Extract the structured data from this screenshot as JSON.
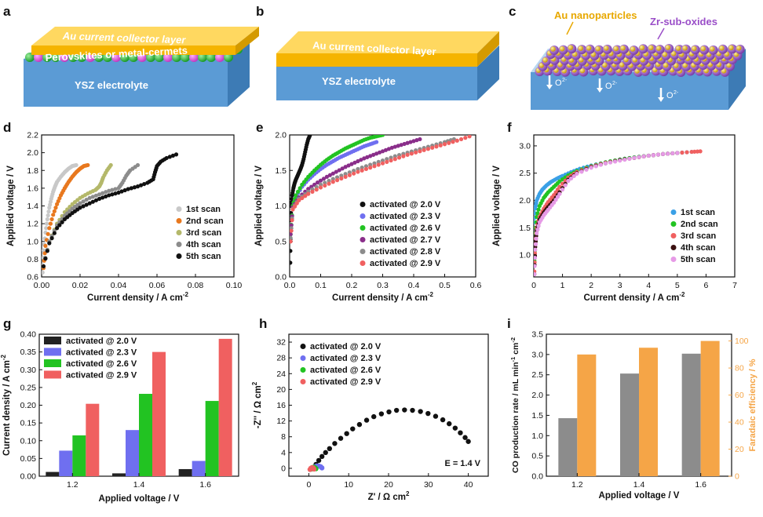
{
  "panel_labels": [
    "a",
    "b",
    "c",
    "d",
    "e",
    "f",
    "g",
    "h",
    "i"
  ],
  "illustrations": {
    "a": {
      "top_layer": "Au current collector layer",
      "middle_layer": "Perovskites or metal-cermets",
      "bottom_layer": "YSZ electrolyte"
    },
    "b": {
      "top_layer": "Au current collector layer",
      "bottom_layer": "YSZ electrolyte"
    },
    "c": {
      "particles_a": "Au nanoparticles",
      "particles_b": "Zr-sub-oxides",
      "ion": "O",
      "ion_charge": "2-"
    }
  },
  "colors": {
    "black": "#111111",
    "blue": "#6f6ff0",
    "green": "#22c322",
    "purple": "#8a2e8a",
    "gray": "#8c8c8c",
    "red": "#f06060",
    "orange": "#f5a547",
    "light": "#c8c8c8",
    "olive": "#b4b86a",
    "sky": "#3aa0e6",
    "pink": "#f07070",
    "dark": "#3a1010",
    "magenta": "#e69ae6"
  },
  "chart_data": [
    {
      "id": "d",
      "type": "scatter",
      "xlabel": "Current density / A cm",
      "xlabel_sup": "-2",
      "ylabel": "Applied voltage / V",
      "xlim": [
        0,
        0.1
      ],
      "ylim": [
        0.6,
        2.2
      ],
      "xticks": [
        "0.00",
        "0.02",
        "0.04",
        "0.06",
        "0.08",
        "0.10"
      ],
      "yticks": [
        "0.6",
        "0.8",
        "1.0",
        "1.2",
        "1.4",
        "1.6",
        "1.8",
        "2.0",
        "2.2"
      ],
      "legend_position": "center-right",
      "series": [
        {
          "name": "1st scan",
          "color": "#c8c8c8",
          "x": [
            0.0005,
            0.001,
            0.002,
            0.003,
            0.004,
            0.005,
            0.006,
            0.007,
            0.008,
            0.01,
            0.012,
            0.014,
            0.016,
            0.018
          ],
          "y": [
            0.65,
            0.9,
            1.1,
            1.25,
            1.38,
            1.48,
            1.56,
            1.62,
            1.67,
            1.73,
            1.78,
            1.82,
            1.85,
            1.86
          ]
        },
        {
          "name": "2nd scan",
          "color": "#e8781e",
          "x": [
            0.001,
            0.002,
            0.004,
            0.006,
            0.008,
            0.01,
            0.012,
            0.014,
            0.016,
            0.018,
            0.02,
            0.022,
            0.024
          ],
          "y": [
            0.7,
            0.95,
            1.15,
            1.3,
            1.42,
            1.52,
            1.6,
            1.67,
            1.73,
            1.78,
            1.82,
            1.85,
            1.86
          ]
        },
        {
          "name": "3rd scan",
          "color": "#b4b86a",
          "x": [
            0.001,
            0.004,
            0.008,
            0.012,
            0.016,
            0.02,
            0.024,
            0.028,
            0.03,
            0.031,
            0.032,
            0.034,
            0.036
          ],
          "y": [
            0.72,
            1.0,
            1.2,
            1.33,
            1.42,
            1.49,
            1.54,
            1.58,
            1.62,
            1.66,
            1.72,
            1.8,
            1.86
          ]
        },
        {
          "name": "4th scan",
          "color": "#8c8c8c",
          "x": [
            0.001,
            0.004,
            0.008,
            0.012,
            0.016,
            0.02,
            0.025,
            0.03,
            0.035,
            0.04,
            0.042,
            0.044,
            0.046,
            0.05
          ],
          "y": [
            0.72,
            1.0,
            1.18,
            1.29,
            1.37,
            1.43,
            1.49,
            1.53,
            1.57,
            1.6,
            1.66,
            1.74,
            1.8,
            1.86
          ]
        },
        {
          "name": "5th scan",
          "color": "#111111",
          "x": [
            0.001,
            0.004,
            0.008,
            0.012,
            0.016,
            0.02,
            0.025,
            0.03,
            0.035,
            0.04,
            0.045,
            0.05,
            0.055,
            0.058,
            0.059,
            0.06,
            0.062,
            0.065,
            0.07
          ],
          "y": [
            0.72,
            0.98,
            1.15,
            1.25,
            1.32,
            1.38,
            1.43,
            1.48,
            1.52,
            1.55,
            1.59,
            1.62,
            1.66,
            1.7,
            1.78,
            1.85,
            1.9,
            1.94,
            1.98
          ]
        }
      ]
    },
    {
      "id": "e",
      "type": "scatter",
      "xlabel": "Current density / A cm",
      "xlabel_sup": "-2",
      "ylabel": "Applied voltage / V",
      "xlim": [
        0,
        0.6
      ],
      "ylim": [
        0,
        2.0
      ],
      "xticks": [
        "0.0",
        "0.1",
        "0.2",
        "0.3",
        "0.4",
        "0.5",
        "0.6"
      ],
      "yticks": [
        "0.0",
        "0.5",
        "1.0",
        "1.5",
        "2.0"
      ],
      "legend_position": "bottom-right",
      "series": [
        {
          "name": "activated @ 2.0 V",
          "color": "#111111",
          "x": [
            0.002,
            0.003,
            0.005,
            0.008,
            0.012,
            0.016,
            0.02,
            0.025,
            0.03,
            0.035,
            0.04,
            0.045,
            0.05,
            0.055,
            0.06,
            0.065
          ],
          "y": [
            0.2,
            0.7,
            1.0,
            1.15,
            1.25,
            1.32,
            1.37,
            1.42,
            1.47,
            1.52,
            1.58,
            1.66,
            1.76,
            1.86,
            1.94,
            1.99
          ]
        },
        {
          "name": "activated @ 2.3 V",
          "color": "#6f6ff0",
          "x": [
            0.003,
            0.01,
            0.02,
            0.04,
            0.06,
            0.08,
            0.1,
            0.12,
            0.14,
            0.16,
            0.18,
            0.2,
            0.22,
            0.24,
            0.26,
            0.28
          ],
          "y": [
            0.6,
            1.0,
            1.13,
            1.27,
            1.37,
            1.45,
            1.52,
            1.58,
            1.63,
            1.68,
            1.72,
            1.76,
            1.8,
            1.84,
            1.87,
            1.9
          ]
        },
        {
          "name": "activated @ 2.6 V",
          "color": "#22c322",
          "x": [
            0.003,
            0.01,
            0.02,
            0.04,
            0.06,
            0.08,
            0.1,
            0.12,
            0.14,
            0.16,
            0.18,
            0.2,
            0.22,
            0.24,
            0.26,
            0.28,
            0.3
          ],
          "y": [
            0.6,
            1.0,
            1.15,
            1.3,
            1.41,
            1.5,
            1.58,
            1.65,
            1.71,
            1.76,
            1.81,
            1.85,
            1.89,
            1.93,
            1.96,
            1.98,
            2.0
          ]
        },
        {
          "name": "activated @ 2.7 V",
          "color": "#8a2e8a",
          "x": [
            0.003,
            0.01,
            0.03,
            0.06,
            0.09,
            0.12,
            0.15,
            0.18,
            0.21,
            0.24,
            0.27,
            0.3,
            0.33,
            0.36,
            0.39,
            0.42
          ],
          "y": [
            0.6,
            0.98,
            1.12,
            1.24,
            1.33,
            1.41,
            1.48,
            1.55,
            1.61,
            1.67,
            1.72,
            1.77,
            1.82,
            1.86,
            1.9,
            1.94
          ]
        },
        {
          "name": "activated @ 2.8 V",
          "color": "#8c8c8c",
          "x": [
            0.003,
            0.01,
            0.03,
            0.06,
            0.1,
            0.14,
            0.18,
            0.22,
            0.26,
            0.3,
            0.34,
            0.38,
            0.42,
            0.46,
            0.5,
            0.53
          ],
          "y": [
            0.55,
            0.96,
            1.1,
            1.2,
            1.3,
            1.38,
            1.45,
            1.52,
            1.58,
            1.64,
            1.7,
            1.75,
            1.8,
            1.85,
            1.9,
            1.94
          ]
        },
        {
          "name": "activated @ 2.9 V",
          "color": "#f06060",
          "x": [
            0.003,
            0.01,
            0.03,
            0.06,
            0.1,
            0.14,
            0.18,
            0.22,
            0.26,
            0.3,
            0.34,
            0.38,
            0.42,
            0.46,
            0.5,
            0.54,
            0.58
          ],
          "y": [
            0.5,
            0.95,
            1.08,
            1.17,
            1.26,
            1.34,
            1.41,
            1.48,
            1.54,
            1.6,
            1.66,
            1.72,
            1.77,
            1.82,
            1.87,
            1.92,
            1.98
          ]
        }
      ]
    },
    {
      "id": "f",
      "type": "scatter",
      "xlabel": "Current density / A cm",
      "xlabel_sup": "-2",
      "ylabel": "Applied voltage / V",
      "xlim": [
        0,
        7
      ],
      "ylim": [
        0.6,
        3.2
      ],
      "xticks": [
        "0",
        "1",
        "2",
        "3",
        "4",
        "5",
        "6",
        "7"
      ],
      "yticks": [
        "1.0",
        "1.5",
        "2.0",
        "2.5",
        "3.0"
      ],
      "legend_position": "bottom-right",
      "series": [
        {
          "name": "1st scan",
          "color": "#3aa0e6",
          "x": [
            0.02,
            0.05,
            0.1,
            0.2,
            0.3,
            0.45,
            0.6,
            0.8,
            1.0,
            1.3,
            1.6,
            2.0,
            2.5,
            3.0,
            3.5,
            4.0,
            4.5,
            5.0,
            5.5
          ],
          "y": [
            1.6,
            1.85,
            2.0,
            2.12,
            2.2,
            2.28,
            2.34,
            2.4,
            2.45,
            2.52,
            2.58,
            2.64,
            2.7,
            2.75,
            2.79,
            2.82,
            2.85,
            2.87,
            2.89
          ]
        },
        {
          "name": "2nd scan",
          "color": "#22c322",
          "x": [
            0.02,
            0.05,
            0.1,
            0.2,
            0.35,
            0.5,
            0.7,
            0.9,
            1.2,
            1.5,
            2.0,
            2.5,
            3.0,
            3.5,
            4.0,
            4.5,
            5.0
          ],
          "y": [
            0.9,
            1.4,
            1.7,
            1.9,
            2.05,
            2.15,
            2.25,
            2.35,
            2.46,
            2.54,
            2.63,
            2.7,
            2.75,
            2.79,
            2.82,
            2.85,
            2.87
          ]
        },
        {
          "name": "3rd scan",
          "color": "#f06060",
          "x": [
            0.02,
            0.05,
            0.1,
            0.2,
            0.35,
            0.5,
            0.7,
            0.9,
            1.2,
            1.5,
            2.0,
            2.5,
            3.0,
            3.5,
            4.0,
            4.5,
            5.0,
            5.5,
            5.8
          ],
          "y": [
            0.7,
            1.2,
            1.5,
            1.7,
            1.85,
            1.97,
            2.1,
            2.25,
            2.42,
            2.52,
            2.62,
            2.69,
            2.74,
            2.78,
            2.82,
            2.85,
            2.87,
            2.89,
            2.9
          ]
        },
        {
          "name": "4th scan",
          "color": "#3a1010",
          "x": [
            0.02,
            0.05,
            0.1,
            0.2,
            0.35,
            0.5,
            0.7,
            0.9,
            1.2,
            1.5,
            2.0,
            2.5,
            3.0,
            3.5,
            4.0,
            4.5,
            5.0
          ],
          "y": [
            0.65,
            1.15,
            1.45,
            1.65,
            1.78,
            1.88,
            2.0,
            2.15,
            2.38,
            2.5,
            2.61,
            2.68,
            2.74,
            2.78,
            2.82,
            2.85,
            2.87
          ]
        },
        {
          "name": "5th scan",
          "color": "#e69ae6",
          "x": [
            0.02,
            0.05,
            0.1,
            0.2,
            0.35,
            0.5,
            0.7,
            0.9,
            1.2,
            1.5,
            2.0,
            2.5,
            3.0,
            3.5,
            4.0,
            4.5,
            5.0
          ],
          "y": [
            0.65,
            1.1,
            1.4,
            1.6,
            1.73,
            1.83,
            1.96,
            2.12,
            2.36,
            2.49,
            2.6,
            2.68,
            2.73,
            2.78,
            2.82,
            2.85,
            2.87
          ]
        }
      ]
    },
    {
      "id": "g",
      "type": "bar",
      "xlabel": "Applied voltage / V",
      "ylabel": "Current density / A cm",
      "ylabel_sup": "-2",
      "categories": [
        "1.2",
        "1.4",
        "1.6"
      ],
      "ylim": [
        0,
        0.4
      ],
      "yticks": [
        "0.00",
        "0.05",
        "0.10",
        "0.15",
        "0.20",
        "0.25",
        "0.30",
        "0.35",
        "0.40"
      ],
      "legend_position": "top-left",
      "series": [
        {
          "name": "activated @ 2.0 V",
          "color": "#222222",
          "values": [
            0.012,
            0.008,
            0.02
          ]
        },
        {
          "name": "activated @ 2.3 V",
          "color": "#6f6ff0",
          "values": [
            0.072,
            0.13,
            0.043
          ]
        },
        {
          "name": "activated @ 2.6 V",
          "color": "#22c322",
          "values": [
            0.115,
            0.232,
            0.212
          ]
        },
        {
          "name": "activated @ 2.9 V",
          "color": "#f06060",
          "values": [
            0.204,
            0.35,
            0.387
          ]
        }
      ]
    },
    {
      "id": "h",
      "type": "scatter",
      "xlabel": "Z' / Ω cm",
      "xlabel_sup": "2",
      "ylabel": "-Z'' / Ω cm",
      "ylabel_sup": "2",
      "xlim": [
        -5,
        45
      ],
      "ylim": [
        -2,
        34
      ],
      "xticks": [
        "0",
        "10",
        "20",
        "30",
        "40"
      ],
      "xtick_values": [
        0,
        10,
        20,
        30,
        40
      ],
      "yticks": [
        "0",
        "4",
        "8",
        "12",
        "16",
        "20",
        "24",
        "28",
        "32"
      ],
      "ytick_values": [
        0,
        4,
        8,
        12,
        16,
        20,
        24,
        28,
        32
      ],
      "annotation": "E = 1.4 V",
      "legend_position": "top-left",
      "series": [
        {
          "name": "activated @ 2.0 V",
          "color": "#111111",
          "x": [
            1.2,
            1.8,
            2.5,
            3.3,
            4.2,
            5.2,
            6.5,
            8.0,
            9.5,
            11.0,
            12.7,
            14.5,
            16.3,
            18.2,
            20.1,
            22.0,
            24.0,
            26.0,
            28.0,
            29.9,
            31.8,
            33.6,
            35.2,
            36.7,
            38.0,
            39.2,
            40.0
          ],
          "y": [
            0.2,
            1.0,
            2.0,
            3.0,
            4.0,
            5.0,
            6.3,
            7.6,
            8.8,
            10.0,
            11.1,
            12.2,
            13.1,
            13.8,
            14.3,
            14.7,
            14.8,
            14.7,
            14.4,
            13.9,
            13.2,
            12.3,
            11.3,
            10.2,
            9.0,
            7.8,
            6.8
          ]
        },
        {
          "name": "activated @ 2.3 V",
          "color": "#6f6ff0",
          "x": [
            1.0,
            1.5,
            2.0,
            2.5,
            3.0,
            3.3
          ],
          "y": [
            0.0,
            0.4,
            0.6,
            0.6,
            0.4,
            0.1
          ]
        },
        {
          "name": "activated @ 2.6 V",
          "color": "#22c322",
          "x": [
            0.6,
            0.9,
            1.2,
            1.5,
            1.8
          ],
          "y": [
            -0.2,
            0.2,
            0.3,
            0.2,
            -0.1
          ]
        },
        {
          "name": "activated @ 2.9 V",
          "color": "#f06060",
          "x": [
            0.3,
            0.5,
            0.8,
            1.1,
            1.3
          ],
          "y": [
            -0.3,
            0.0,
            0.2,
            0.1,
            -0.2
          ]
        }
      ]
    },
    {
      "id": "i",
      "type": "bar",
      "xlabel": "Applied voltage / V",
      "ylabel": "CO production rate / mL min",
      "ylabel_sup1": "-1",
      "ylabel_mid": " cm",
      "ylabel_sup2": "-2",
      "ylabel_right": "Faradaic efficiency / %",
      "categories": [
        "1.2",
        "1.4",
        "1.6"
      ],
      "ylim": [
        0,
        3.5
      ],
      "ylim_right": [
        0,
        105
      ],
      "yticks": [
        "0.0",
        "0.5",
        "1.0",
        "1.5",
        "2.0",
        "2.5",
        "3.0",
        "3.5"
      ],
      "yticks_right": [
        "0",
        "20",
        "40",
        "60",
        "80",
        "100"
      ],
      "series": [
        {
          "name": "CO production rate",
          "color": "#8c8c8c",
          "axis": "left",
          "values": [
            1.43,
            2.53,
            3.02
          ]
        },
        {
          "name": "Faradaic efficiency",
          "color": "#f5a547",
          "axis": "right",
          "values": [
            90,
            95,
            100
          ]
        }
      ]
    }
  ]
}
